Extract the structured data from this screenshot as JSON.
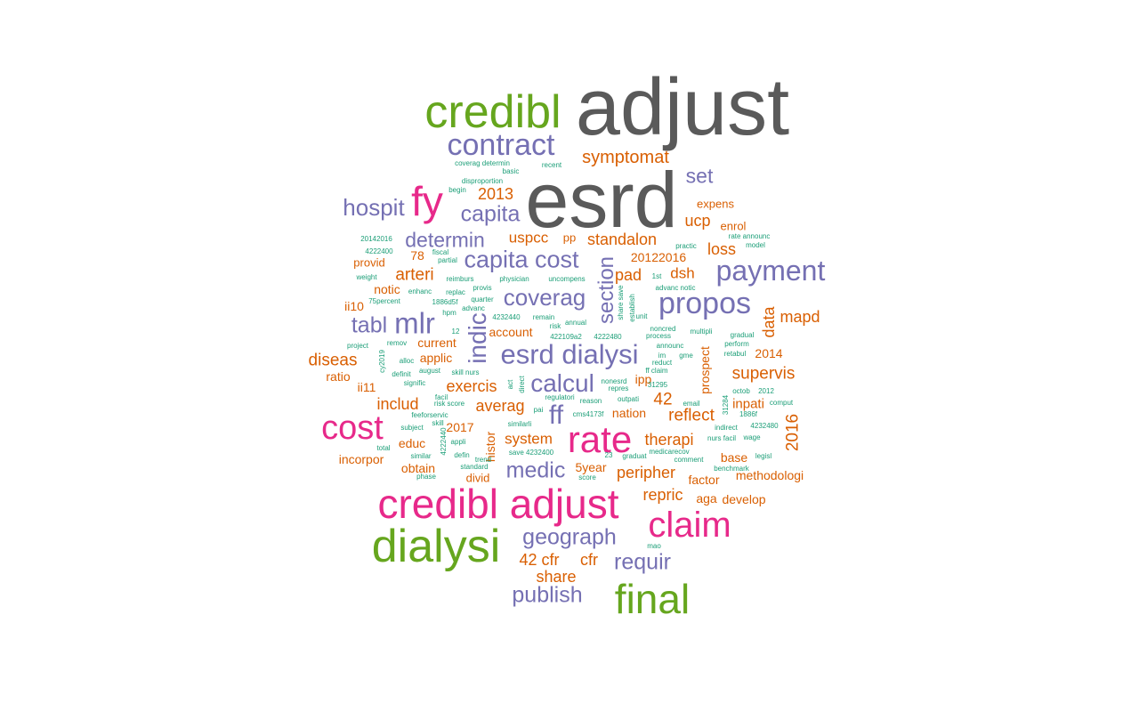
{
  "palette": {
    "grey": "#5a5a5a",
    "green": "#66a61e",
    "pink": "#e7298a",
    "purple": "#7570b3",
    "orange": "#d95f02",
    "teal": "#1b9e77"
  },
  "words": [
    "adjust",
    "esrd",
    "credibl",
    "fy",
    "contract",
    "credibl adjust",
    "dialysi",
    "final",
    "claim",
    "cost",
    "rate",
    "payment",
    "propos",
    "esrd dialysi",
    "capita cost",
    "hospit",
    "capita",
    "determin",
    "tabl",
    "mlr",
    "coverag",
    "indic",
    "section",
    "ff",
    "calcul",
    "medic",
    "geograph",
    "publish",
    "requir",
    "set",
    "symptomat",
    "2013",
    "uspcc",
    "standalon",
    "loss",
    "ucp",
    "expens",
    "enrol",
    "20122016",
    "pad",
    "dsh",
    "arteri",
    "78",
    "provid",
    "data",
    "mapd",
    "supervis",
    "2016",
    "inpati",
    "reflect",
    "42",
    "ipp",
    "exercis",
    "averag",
    "includ",
    "diseas",
    "ratio",
    "ii11",
    "ii10",
    "notic",
    "account",
    "current",
    "applic",
    "2017",
    "educ",
    "incorpor",
    "obtain",
    "histor",
    "system",
    "5year",
    "peripher",
    "therapi",
    "repric",
    "aga",
    "develop",
    "base",
    "methodologi",
    "factor",
    "42 cfr",
    "cfr",
    "share",
    "prospect",
    "nation",
    "2014",
    "divid",
    "coverag determin",
    "recent",
    "basic",
    "disproportion",
    "begin",
    "pp",
    "practic",
    "rate announc",
    "model",
    "20142016",
    "fiscal",
    "partial",
    "4222400",
    "weight",
    "reimburs",
    "physician",
    "uncompens",
    "1st",
    "advanc notic",
    "enhanc",
    "replac",
    "provis",
    "75percent",
    "1886d5f",
    "advanc",
    "hpm",
    "4232440",
    "remain",
    "annual",
    "risk",
    "12",
    "422109a2",
    "4222480",
    "noncred",
    "process",
    "multipli",
    "announc",
    "gradual",
    "perform",
    "retabul",
    "project",
    "remov",
    "cy2019",
    "alloc",
    "august",
    "skill nurs",
    "definit",
    "signific",
    "direct",
    "act",
    "regulatori",
    "nonesrd",
    "repres",
    "outpati",
    "31295",
    "ff claim",
    "reduct",
    "im",
    "gme",
    "octob",
    "2012",
    "comput",
    "email",
    "1886f",
    "4232480",
    "indirect",
    "wage",
    "nurs facil",
    "medicarecov",
    "comment",
    "benchmark",
    "legisl",
    "graduat",
    "23",
    "save 4232400",
    "score",
    "standard",
    "trend",
    "defin",
    "phase",
    "similar",
    "total",
    "appli",
    "4222440",
    "similarli",
    "cms4173f",
    "pai",
    "risk score",
    "facil",
    "feeforservic",
    "subject",
    "skill",
    "reason",
    "mao",
    "quarter",
    "establish",
    "share save",
    "unit",
    "31284"
  ]
}
